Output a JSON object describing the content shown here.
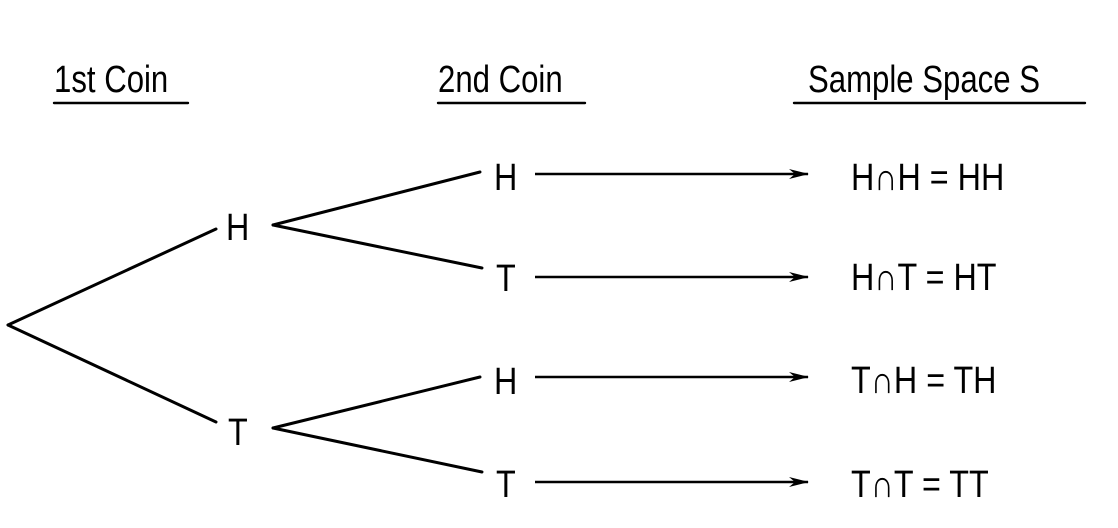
{
  "headers": {
    "first_coin": "1st Coin",
    "second_coin": "2nd Coin",
    "sample_space": "Sample Space S"
  },
  "first_coin_outcomes": [
    "H",
    "T"
  ],
  "second_coin_outcomes": [
    "H",
    "T",
    "H",
    "T"
  ],
  "sample_space_outcomes": [
    "H∩H = HH",
    "H∩T = HT",
    "T∩H = TH",
    "T∩T = TT"
  ]
}
